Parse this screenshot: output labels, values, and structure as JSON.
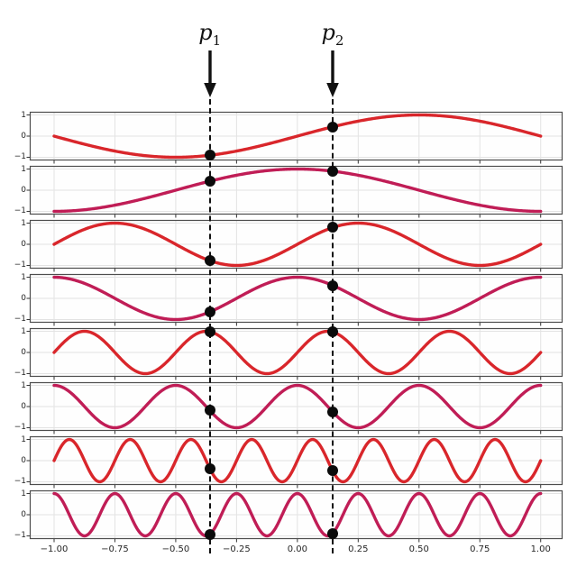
{
  "figure": {
    "background": "#ffffff",
    "p_markers": [
      {
        "name": "p1",
        "base": "p",
        "subscript": "1",
        "x": -0.36
      },
      {
        "name": "p2",
        "base": "p",
        "subscript": "2",
        "x": 0.145
      }
    ]
  },
  "colors": {
    "sin_line": "#d9262b",
    "cos_line": "#c01d56",
    "grid": "#e3e3e3",
    "spine": "#4d4d4d",
    "tick": "#333333",
    "dot": "#0b0b0b",
    "dashed_line": "#111111",
    "plot_bg": "#fefefe"
  },
  "chart_data": {
    "type": "line",
    "title": "",
    "xlabel": "",
    "ylabel": "",
    "x_range": [
      -1,
      1
    ],
    "xlim": [
      -1.1,
      1.09
    ],
    "ylim": [
      -1.15,
      1.15
    ],
    "grid": true,
    "x_ticks": [
      -1.0,
      -0.75,
      -0.5,
      -0.25,
      0.0,
      0.25,
      0.5,
      0.75,
      1.0
    ],
    "x_tick_labels": [
      "−1.00",
      "−0.75",
      "−0.50",
      "−0.25",
      "0.00",
      "0.25",
      "0.50",
      "0.75",
      "1.00"
    ],
    "y_ticks": [
      1,
      0,
      -1
    ],
    "y_tick_labels": [
      "1",
      "0",
      "−1"
    ],
    "marker_positions": [
      -0.36,
      0.145
    ],
    "series": [
      {
        "label": "sin(1πx)",
        "function": "sin",
        "frequency": 1,
        "color": "#d9262b",
        "marker_values": [
          -0.9,
          0.44
        ]
      },
      {
        "label": "cos(1πx)",
        "function": "cos",
        "frequency": 1,
        "color": "#c01d56",
        "marker_values": [
          0.43,
          0.9
        ]
      },
      {
        "label": "sin(2πx)",
        "function": "sin",
        "frequency": 2,
        "color": "#d9262b",
        "marker_values": [
          -0.77,
          0.79
        ]
      },
      {
        "label": "cos(2πx)",
        "function": "cos",
        "frequency": 2,
        "color": "#c01d56",
        "marker_values": [
          -0.64,
          0.61
        ]
      },
      {
        "label": "sin(4πx)",
        "function": "sin",
        "frequency": 4,
        "color": "#d9262b",
        "marker_values": [
          0.98,
          0.97
        ]
      },
      {
        "label": "cos(4πx)",
        "function": "cos",
        "frequency": 4,
        "color": "#c01d56",
        "marker_values": [
          -0.19,
          -0.25
        ]
      },
      {
        "label": "sin(8πx)",
        "function": "sin",
        "frequency": 8,
        "color": "#d9262b",
        "marker_values": [
          -0.37,
          -0.48
        ]
      },
      {
        "label": "cos(8πx)",
        "function": "cos",
        "frequency": 8,
        "color": "#c01d56",
        "marker_values": [
          -0.93,
          -0.88
        ]
      }
    ]
  }
}
